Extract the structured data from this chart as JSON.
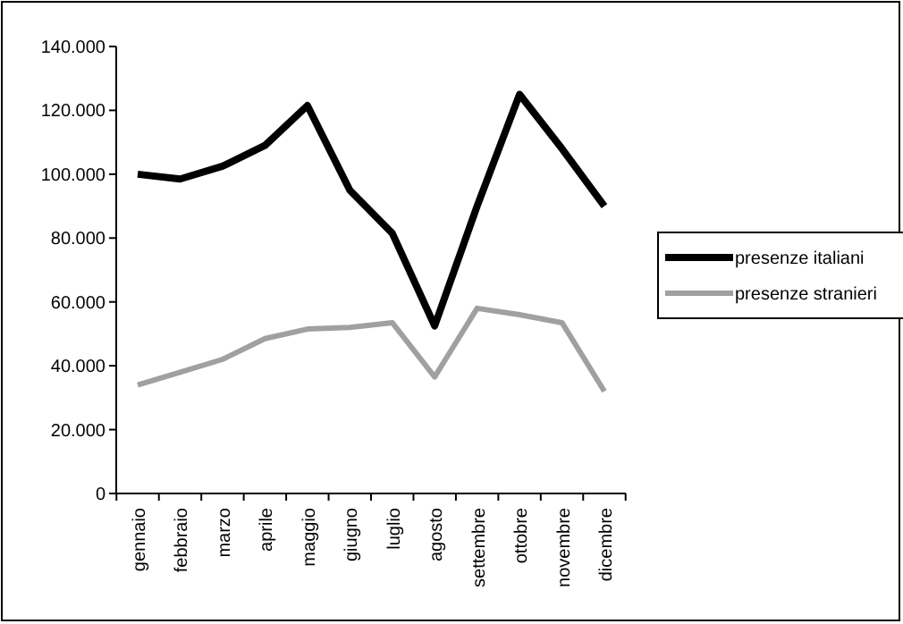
{
  "chart_data": {
    "type": "line",
    "categories": [
      "gennaio",
      "febbraio",
      "marzo",
      "aprile",
      "maggio",
      "giugno",
      "luglio",
      "agosto",
      "settembre",
      "ottobre",
      "novembre",
      "dicembre"
    ],
    "series": [
      {
        "name": "presenze italiani",
        "color": "#000000",
        "values": [
          100000,
          98500,
          102500,
          109000,
          121500,
          95000,
          81500,
          52500,
          90000,
          125000,
          108000,
          90000
        ]
      },
      {
        "name": "presenze stranieri",
        "color": "#a0a0a0",
        "values": [
          34000,
          38000,
          42000,
          48500,
          51500,
          52000,
          53500,
          36500,
          58000,
          56000,
          53500,
          32000
        ]
      }
    ],
    "ylim": [
      0,
      140000
    ],
    "yticks": [
      {
        "value": 0,
        "label": "0"
      },
      {
        "value": 20000,
        "label": "20.000"
      },
      {
        "value": 40000,
        "label": "40.000"
      },
      {
        "value": 60000,
        "label": "60.000"
      },
      {
        "value": 80000,
        "label": "80.000"
      },
      {
        "value": 100000,
        "label": "100.000"
      },
      {
        "value": 120000,
        "label": "120.000"
      },
      {
        "value": 140000,
        "label": "140.000"
      }
    ],
    "legend": "right",
    "grid": false,
    "marker": "none",
    "line_style": "solid"
  }
}
